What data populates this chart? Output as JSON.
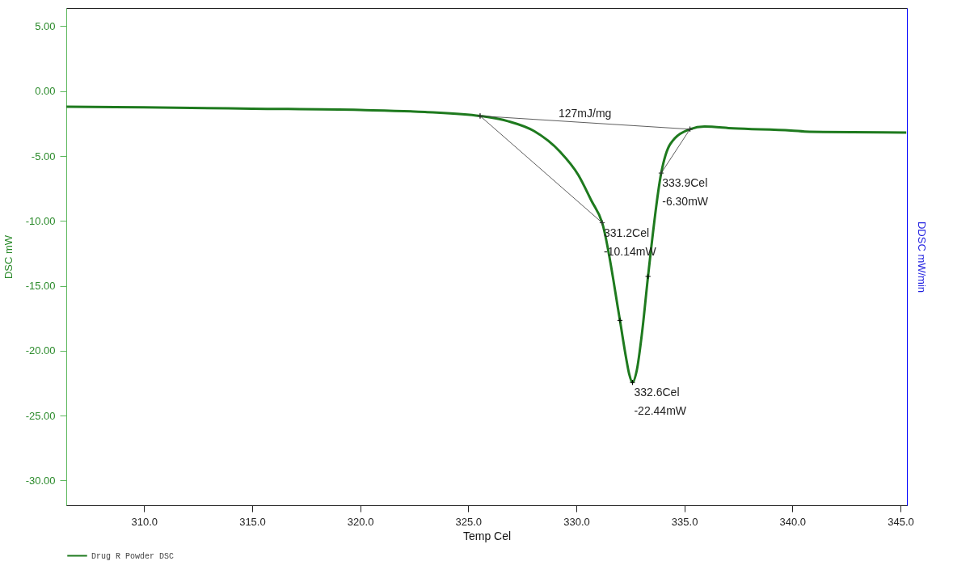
{
  "chart_data": {
    "type": "line",
    "xlabel": "Temp Cel",
    "ylabel": "DSC mW",
    "y2label": "DDSC mW/min",
    "xlim": [
      306.4,
      345.3
    ],
    "ylim": [
      -31.9,
      6.4
    ],
    "xticks": [
      {
        "value": 310,
        "label": "310.0"
      },
      {
        "value": 315,
        "label": "315.0"
      },
      {
        "value": 320,
        "label": "320.0"
      },
      {
        "value": 325,
        "label": "325.0"
      },
      {
        "value": 330,
        "label": "330.0"
      },
      {
        "value": 335,
        "label": "335.0"
      },
      {
        "value": 340,
        "label": "340.0"
      },
      {
        "value": 345,
        "label": "345.0"
      }
    ],
    "yticks": [
      {
        "value": 5,
        "label": "5.00"
      },
      {
        "value": 0,
        "label": "0.00"
      },
      {
        "value": -5,
        "label": "-5.00"
      },
      {
        "value": -10,
        "label": "-10.00"
      },
      {
        "value": -15,
        "label": "-15.00"
      },
      {
        "value": -20,
        "label": "-20.00"
      },
      {
        "value": -25,
        "label": "-25.00"
      },
      {
        "value": -30,
        "label": "-30.00"
      }
    ],
    "grid": false,
    "legend": "bottom",
    "series": [
      {
        "name": "Drug R Powder  DSC",
        "color": "#1e7a1e",
        "marker": "none",
        "x": [
          306.4,
          310,
          315,
          320,
          323,
          325.55,
          326.83,
          328.04,
          329.25,
          330.1,
          330.71,
          331.2,
          332.02,
          332.3,
          332.45,
          332.6,
          332.8,
          333.05,
          333.32,
          333.93,
          334.35,
          335.26,
          335.93,
          337.26,
          339.94,
          340.79,
          345.27
        ],
        "values": [
          -1.19,
          -1.25,
          -1.35,
          -1.45,
          -1.6,
          -1.91,
          -2.31,
          -3.07,
          -4.67,
          -6.47,
          -8.47,
          -10.14,
          -17.66,
          -20.5,
          -21.8,
          -22.44,
          -21.5,
          -18.5,
          -14.27,
          -6.31,
          -4.07,
          -2.93,
          -2.73,
          -2.87,
          -3.03,
          -3.13,
          -3.19
        ]
      },
      {
        "type": "line",
        "color": "#333333",
        "marker": "cross",
        "x": [
          325.55,
          335.26
        ],
        "values": [
          -1.91,
          -2.93
        ]
      },
      {
        "type": "line",
        "color": "#333333",
        "marker": "cross",
        "x": [
          325.55,
          331.2
        ],
        "values": [
          -1.91,
          -10.14
        ]
      },
      {
        "type": "line",
        "color": "#333333",
        "marker": "cross",
        "x": [
          333.93,
          335.26
        ],
        "values": [
          -6.31,
          -2.93
        ]
      },
      {
        "type": "scatter",
        "color": "#000000",
        "marker": "cross",
        "x": [
          332.02,
          332.6,
          333.32
        ],
        "values": [
          -17.66,
          -22.44,
          -14.27
        ]
      }
    ],
    "annotations": [
      {
        "text": "127mJ/mg",
        "x": 330.4,
        "y": -2.42
      },
      {
        "text": "331.2Cel\n-10.14mW",
        "x": 331.2,
        "y": -10.14
      },
      {
        "text": "333.9Cel\n-6.30mW",
        "x": 333.9,
        "y": -6.3
      },
      {
        "text": "332.6Cel\n-22.44mW",
        "x": 332.6,
        "y": -22.44
      }
    ]
  }
}
